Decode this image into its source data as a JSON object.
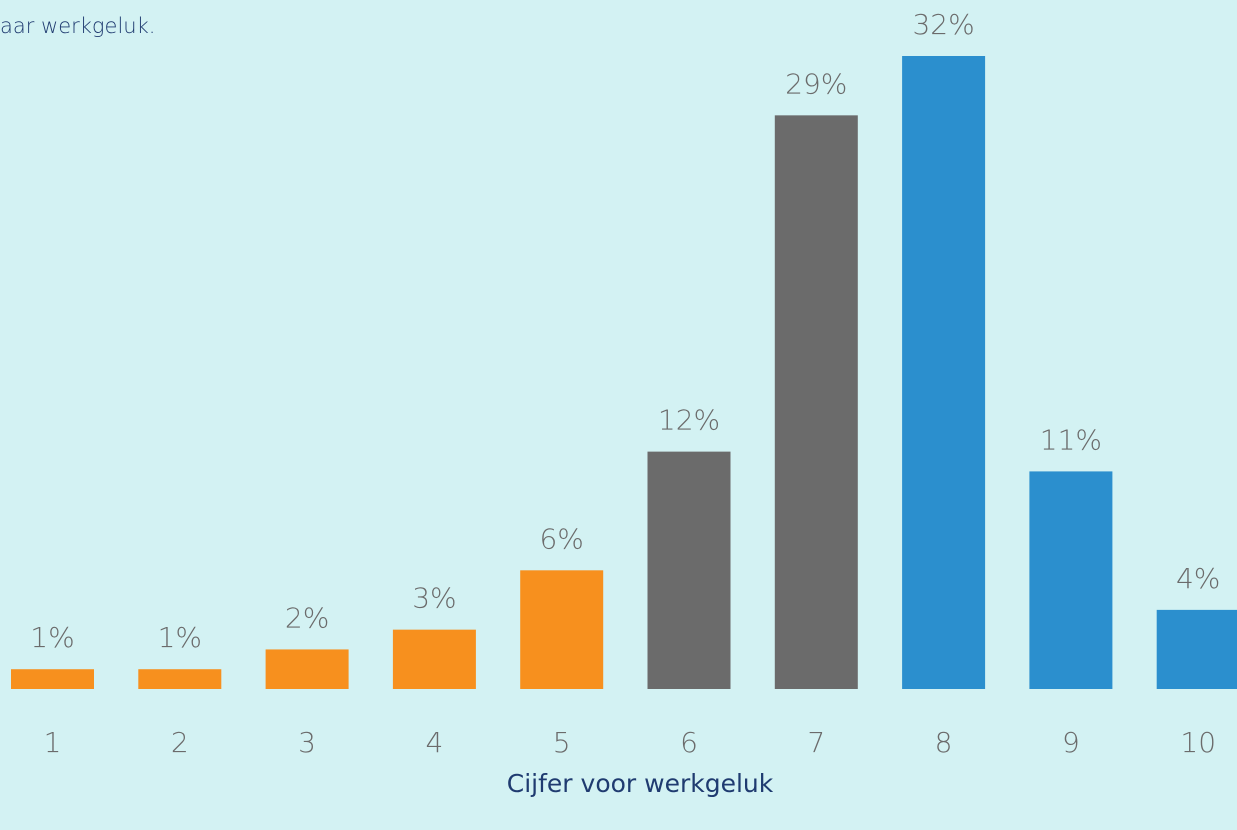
{
  "chart_data": {
    "type": "bar",
    "subtitle": "aar werkgeluk.",
    "x_label": "Cijfer voor werkgeluk",
    "categories": [
      "1",
      "2",
      "3",
      "4",
      "5",
      "6",
      "7",
      "8",
      "9",
      "10"
    ],
    "values": [
      1,
      1,
      2,
      3,
      6,
      12,
      29,
      32,
      11,
      4
    ],
    "value_labels": [
      "1%",
      "1%",
      "2%",
      "3%",
      "6%",
      "12%",
      "29%",
      "32%",
      "11%",
      "4%"
    ],
    "colors": [
      "#f7901e",
      "#f7901e",
      "#f7901e",
      "#f7901e",
      "#f7901e",
      "#6b6b6b",
      "#6b6b6b",
      "#2b8fce",
      "#2b8fce",
      "#2b8fce"
    ]
  }
}
